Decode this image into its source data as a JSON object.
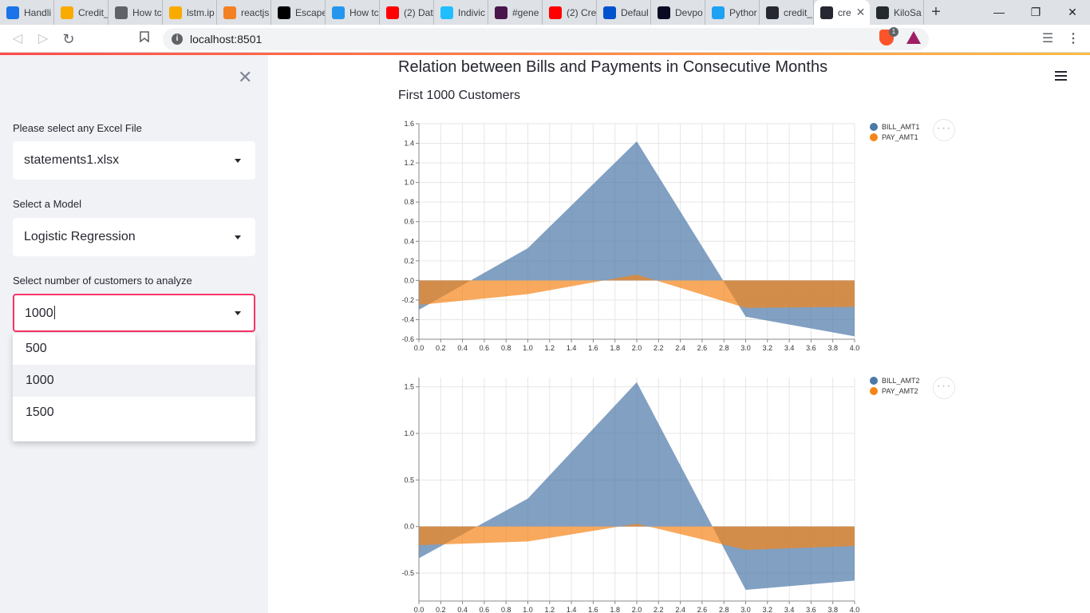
{
  "browser": {
    "tabs": [
      {
        "label": "Handli",
        "color": "#1a73e8"
      },
      {
        "label": "Credit_",
        "color": "#f9ab00"
      },
      {
        "label": "How tc",
        "color": "#5f6368"
      },
      {
        "label": "lstm.ip",
        "color": "#f9ab00"
      },
      {
        "label": "reactjs",
        "color": "#f48024"
      },
      {
        "label": "Escape",
        "color": "#000000"
      },
      {
        "label": "How tc",
        "color": "#2496ed"
      },
      {
        "label": "(2) Dat",
        "color": "#ff0000"
      },
      {
        "label": "Indivic",
        "color": "#20beff"
      },
      {
        "label": "#gene",
        "color": "#4a154b"
      },
      {
        "label": "(2) Cre",
        "color": "#ff0000"
      },
      {
        "label": "Defaul",
        "color": "#0052cc"
      },
      {
        "label": "Devpo",
        "color": "#0a0a23"
      },
      {
        "label": "Pythor",
        "color": "#1da1f2"
      },
      {
        "label": "credit_",
        "color": "#262730"
      },
      {
        "label": "cre",
        "color": "#262730"
      },
      {
        "label": "KiloSa",
        "color": "#24292e"
      }
    ],
    "active_tab_index": 15,
    "url": "localhost:8501",
    "brave_badge": "1"
  },
  "sidebar": {
    "file_label": "Please select any Excel File",
    "file_value": "statements1.xlsx",
    "model_label": "Select a Model",
    "model_value": "Logistic Regression",
    "customers_label": "Select number of customers to analyze",
    "customers_value": "1000",
    "options": [
      "500",
      "1000",
      "1500"
    ],
    "highlighted_option": "1000"
  },
  "main": {
    "title": "Relation between Bills and Payments in Consecutive Months",
    "subtitle": "First 1000 Customers"
  },
  "colors": {
    "bill": "#4c78a8",
    "pay": "#f58518",
    "accent": "#f63366"
  },
  "chart_data": [
    {
      "type": "area",
      "x": [
        0,
        1,
        2,
        3,
        4
      ],
      "series": [
        {
          "name": "BILL_AMT1",
          "values": [
            -0.3,
            0.33,
            1.42,
            -0.37,
            -0.57
          ]
        },
        {
          "name": "PAY_AMT1",
          "values": [
            -0.25,
            -0.14,
            0.06,
            -0.28,
            -0.27
          ]
        }
      ],
      "xlim": [
        0,
        4
      ],
      "ylim": [
        -0.6,
        1.6
      ],
      "xticks": [
        0.0,
        0.2,
        0.4,
        0.6,
        0.8,
        1.0,
        1.2,
        1.4,
        1.6,
        1.8,
        2.0,
        2.2,
        2.4,
        2.6,
        2.8,
        3.0,
        3.2,
        3.4,
        3.6,
        3.8,
        4.0
      ],
      "yticks": [
        -0.6,
        -0.4,
        -0.2,
        0.0,
        0.2,
        0.4,
        0.6,
        0.8,
        1.0,
        1.2,
        1.4,
        1.6
      ],
      "legend": "right",
      "grid": true
    },
    {
      "type": "area",
      "x": [
        0,
        1,
        2,
        3,
        4
      ],
      "series": [
        {
          "name": "BILL_AMT2",
          "values": [
            -0.34,
            0.3,
            1.55,
            -0.68,
            -0.58
          ]
        },
        {
          "name": "PAY_AMT2",
          "values": [
            -0.2,
            -0.16,
            0.03,
            -0.25,
            -0.21
          ]
        }
      ],
      "xlim": [
        0,
        4
      ],
      "ylim": [
        -0.8,
        1.6
      ],
      "xticks": [
        0.0,
        0.2,
        0.4,
        0.6,
        0.8,
        1.0,
        1.2,
        1.4,
        1.6,
        1.8,
        2.0,
        2.2,
        2.4,
        2.6,
        2.8,
        3.0,
        3.2,
        3.4,
        3.6,
        3.8,
        4.0
      ],
      "yticks": [
        -0.5,
        0.0,
        0.5,
        1.0,
        1.5
      ],
      "legend": "right",
      "grid": true
    }
  ]
}
